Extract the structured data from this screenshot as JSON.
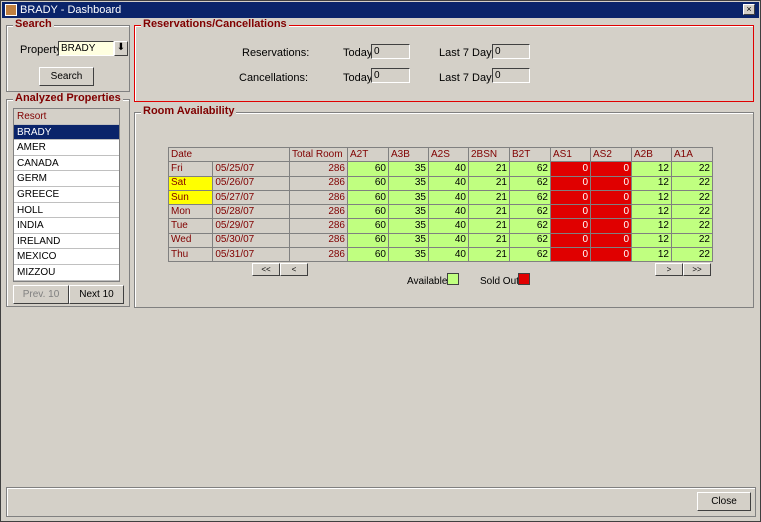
{
  "window": {
    "title": "BRADY - Dashboard",
    "close": "×"
  },
  "search": {
    "title": "Search",
    "property_label": "Property",
    "property_value": "BRADY",
    "search_button": "Search"
  },
  "resv": {
    "title": "Reservations/Cancellations",
    "reservations_label": "Reservations:",
    "cancellations_label": "Cancellations:",
    "today": "Today",
    "last7": "Last 7 Days",
    "res_today": "0",
    "res_7": "0",
    "can_today": "0",
    "can_7": "0"
  },
  "properties": {
    "title": "Analyzed Properties",
    "header": "Resort",
    "items": [
      "BRADY",
      "AMER",
      "CANADA",
      "GERM",
      "GREECE",
      "HOLL",
      "INDIA",
      "IRELAND",
      "MEXICO",
      "MIZZOU"
    ],
    "selected": "BRADY",
    "prev": "Prev. 10",
    "next": "Next 10"
  },
  "availability": {
    "title": "Room Availability",
    "columns": [
      "Date",
      "Total Room",
      "A2T",
      "A3B",
      "A2S",
      "2BSN",
      "B2T",
      "AS1",
      "AS2",
      "A2B",
      "A1A"
    ],
    "rows": [
      [
        "Fri",
        "05/25/07",
        "286",
        "60",
        "35",
        "40",
        "21",
        "62",
        "0",
        "0",
        "12",
        "22"
      ],
      [
        "Sat",
        "05/26/07",
        "286",
        "60",
        "35",
        "40",
        "21",
        "62",
        "0",
        "0",
        "12",
        "22"
      ],
      [
        "Sun",
        "05/27/07",
        "286",
        "60",
        "35",
        "40",
        "21",
        "62",
        "0",
        "0",
        "12",
        "22"
      ],
      [
        "Mon",
        "05/28/07",
        "286",
        "60",
        "35",
        "40",
        "21",
        "62",
        "0",
        "0",
        "12",
        "22"
      ],
      [
        "Tue",
        "05/29/07",
        "286",
        "60",
        "35",
        "40",
        "21",
        "62",
        "0",
        "0",
        "12",
        "22"
      ],
      [
        "Wed",
        "05/30/07",
        "286",
        "60",
        "35",
        "40",
        "21",
        "62",
        "0",
        "0",
        "12",
        "22"
      ],
      [
        "Thu",
        "05/31/07",
        "286",
        "60",
        "35",
        "40",
        "21",
        "62",
        "0",
        "0",
        "12",
        "22"
      ]
    ],
    "weekend_days": [
      "Sat",
      "Sun"
    ],
    "nav": {
      "first": "<<",
      "prev": "<",
      "next": ">",
      "last": ">>"
    },
    "legend": {
      "available": "Available",
      "sold_out": "Sold Out"
    },
    "colors": {
      "available": "#c0ff80",
      "sold_out": "#e00000",
      "weekend": "#ffff00"
    }
  },
  "footer": {
    "close": "Close"
  }
}
